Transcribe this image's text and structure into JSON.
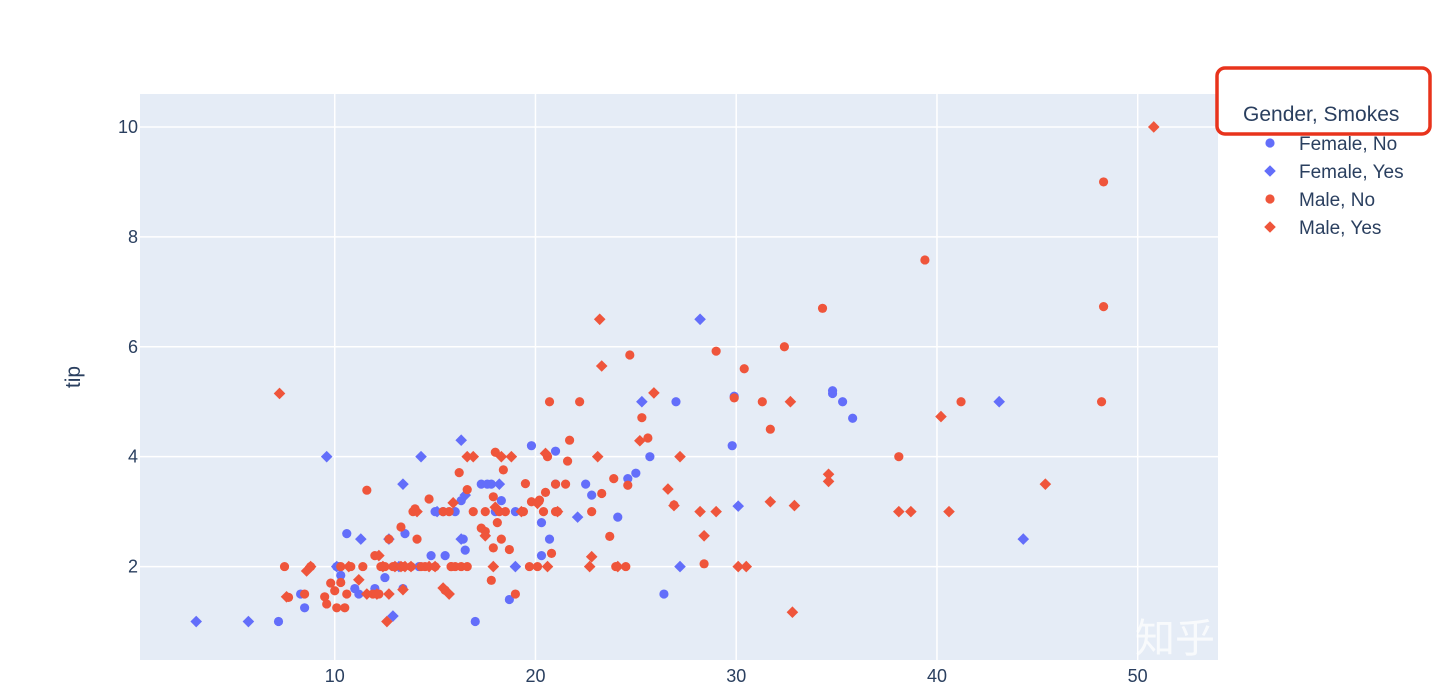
{
  "chart_data": {
    "type": "scatter",
    "xlabel": "",
    "ylabel": "tip",
    "xlim": [
      0.3,
      54.0
    ],
    "ylim": [
      0.3,
      10.6
    ],
    "x_ticks": [
      10,
      20,
      30,
      40,
      50
    ],
    "y_ticks": [
      2,
      4,
      6,
      8,
      10
    ],
    "grid": true,
    "legend": {
      "title": "Gender, Smokes",
      "placement": "top-right"
    },
    "colors": {
      "Female": "#636efa",
      "Male": "#ef553b",
      "plot_bg": "#e5ecf6",
      "highlight": "#e8331c"
    },
    "series": [
      {
        "name": "Female, No",
        "marker": "circle",
        "color": "#636efa",
        "points": [
          [
            7.2,
            1.0
          ],
          [
            10.3,
            1.84
          ],
          [
            10.2,
            2.0
          ],
          [
            10.6,
            2.6
          ],
          [
            11.2,
            1.5
          ],
          [
            12.5,
            1.8
          ],
          [
            13.5,
            2.6
          ],
          [
            14.2,
            2.0
          ],
          [
            15.0,
            3.0
          ],
          [
            15.4,
            3.0
          ],
          [
            16.4,
            2.5
          ],
          [
            16.5,
            2.3
          ],
          [
            17.0,
            1.0
          ],
          [
            17.3,
            3.5
          ],
          [
            17.6,
            3.5
          ],
          [
            18.0,
            3.0
          ],
          [
            18.3,
            3.2
          ],
          [
            18.7,
            1.4
          ],
          [
            19.0,
            3.0
          ],
          [
            19.8,
            4.2
          ],
          [
            20.3,
            2.8
          ],
          [
            20.7,
            2.5
          ],
          [
            21.0,
            3.5
          ],
          [
            21.0,
            4.1
          ],
          [
            22.5,
            3.5
          ],
          [
            22.8,
            3.3
          ],
          [
            24.1,
            2.9
          ],
          [
            24.6,
            3.6
          ],
          [
            25.0,
            3.7
          ],
          [
            25.7,
            4.0
          ],
          [
            26.4,
            1.5
          ],
          [
            27.0,
            5.0
          ],
          [
            29.8,
            4.2
          ],
          [
            29.9,
            5.1
          ],
          [
            34.8,
            5.2
          ],
          [
            35.3,
            5.0
          ],
          [
            35.8,
            4.7
          ],
          [
            34.8,
            5.15
          ],
          [
            16.0,
            3.0
          ],
          [
            13.0,
            2.0
          ],
          [
            12.0,
            1.6
          ],
          [
            11.0,
            1.6
          ],
          [
            8.3,
            1.5
          ],
          [
            8.5,
            1.25
          ],
          [
            10.1,
            2.0
          ],
          [
            14.8,
            2.2
          ],
          [
            16.3,
            3.2
          ],
          [
            17.8,
            3.5
          ],
          [
            20.3,
            2.2
          ],
          [
            13.4,
            1.6
          ],
          [
            15.5,
            2.2
          ]
        ]
      },
      {
        "name": "Female, Yes",
        "marker": "diamond",
        "color": "#636efa",
        "points": [
          [
            3.1,
            1.0
          ],
          [
            5.7,
            1.0
          ],
          [
            9.6,
            4.0
          ],
          [
            10.1,
            2.0
          ],
          [
            11.3,
            2.5
          ],
          [
            12.9,
            1.1
          ],
          [
            13.4,
            3.5
          ],
          [
            14.3,
            4.0
          ],
          [
            16.3,
            4.3
          ],
          [
            16.5,
            3.3
          ],
          [
            16.3,
            2.5
          ],
          [
            18.2,
            3.5
          ],
          [
            22.1,
            2.9
          ],
          [
            25.3,
            5.0
          ],
          [
            27.2,
            2.0
          ],
          [
            28.2,
            6.5
          ],
          [
            30.1,
            3.1
          ],
          [
            43.1,
            5.0
          ],
          [
            44.3,
            2.5
          ],
          [
            12.7,
            2.5
          ],
          [
            13.2,
            2.0
          ],
          [
            19.0,
            2.0
          ],
          [
            15.1,
            3.0
          ]
        ]
      },
      {
        "name": "Male, No",
        "marker": "circle",
        "color": "#ef553b",
        "points": [
          [
            7.5,
            2.0
          ],
          [
            7.7,
            1.44
          ],
          [
            8.5,
            1.5
          ],
          [
            8.8,
            2.0
          ],
          [
            9.5,
            1.45
          ],
          [
            9.6,
            1.32
          ],
          [
            9.8,
            1.7
          ],
          [
            10.0,
            1.56
          ],
          [
            10.1,
            1.25
          ],
          [
            10.3,
            1.71
          ],
          [
            10.3,
            2.0
          ],
          [
            10.5,
            1.25
          ],
          [
            10.6,
            1.5
          ],
          [
            10.8,
            2.0
          ],
          [
            11.4,
            2.0
          ],
          [
            11.6,
            3.39
          ],
          [
            11.9,
            1.5
          ],
          [
            12.0,
            2.2
          ],
          [
            12.2,
            1.5
          ],
          [
            12.5,
            2.0
          ],
          [
            12.7,
            2.5
          ],
          [
            12.9,
            2.0
          ],
          [
            13.0,
            2.0
          ],
          [
            13.3,
            2.72
          ],
          [
            13.4,
            2.0
          ],
          [
            13.8,
            2.0
          ],
          [
            13.9,
            3.0
          ],
          [
            14.1,
            2.5
          ],
          [
            14.3,
            2.0
          ],
          [
            14.5,
            2.0
          ],
          [
            14.7,
            3.23
          ],
          [
            15.0,
            2.0
          ],
          [
            15.4,
            3.0
          ],
          [
            15.5,
            1.57
          ],
          [
            15.7,
            3.0
          ],
          [
            15.8,
            2.0
          ],
          [
            16.0,
            2.0
          ],
          [
            16.2,
            3.71
          ],
          [
            16.3,
            2.0
          ],
          [
            16.6,
            2.0
          ],
          [
            16.6,
            3.4
          ],
          [
            16.9,
            3.0
          ],
          [
            17.3,
            2.7
          ],
          [
            17.5,
            2.64
          ],
          [
            17.8,
            1.75
          ],
          [
            17.9,
            2.34
          ],
          [
            17.9,
            3.27
          ],
          [
            18.0,
            4.08
          ],
          [
            18.2,
            3.0
          ],
          [
            18.3,
            2.5
          ],
          [
            18.4,
            3.76
          ],
          [
            18.5,
            3.0
          ],
          [
            18.7,
            2.31
          ],
          [
            19.0,
            1.5
          ],
          [
            19.4,
            3.0
          ],
          [
            19.5,
            3.51
          ],
          [
            19.7,
            2.0
          ],
          [
            19.8,
            3.18
          ],
          [
            20.1,
            2.0
          ],
          [
            20.2,
            3.21
          ],
          [
            20.4,
            3.0
          ],
          [
            20.5,
            3.35
          ],
          [
            20.7,
            5.0
          ],
          [
            20.8,
            2.24
          ],
          [
            21.0,
            3.0
          ],
          [
            21.0,
            3.5
          ],
          [
            21.5,
            3.5
          ],
          [
            21.6,
            3.92
          ],
          [
            21.7,
            4.3
          ],
          [
            22.2,
            5.0
          ],
          [
            22.8,
            3.0
          ],
          [
            23.3,
            3.33
          ],
          [
            23.7,
            2.55
          ],
          [
            23.9,
            3.6
          ],
          [
            24.0,
            2.0
          ],
          [
            24.5,
            2.0
          ],
          [
            24.6,
            3.48
          ],
          [
            24.7,
            5.85
          ],
          [
            25.3,
            4.71
          ],
          [
            25.6,
            4.34
          ],
          [
            26.9,
            3.12
          ],
          [
            28.4,
            2.05
          ],
          [
            29.0,
            5.92
          ],
          [
            29.9,
            5.07
          ],
          [
            30.4,
            5.6
          ],
          [
            31.3,
            5.0
          ],
          [
            31.7,
            4.5
          ],
          [
            32.4,
            6.0
          ],
          [
            34.3,
            6.7
          ],
          [
            38.1,
            4.0
          ],
          [
            39.4,
            7.58
          ],
          [
            41.2,
            5.0
          ],
          [
            48.2,
            5.0
          ],
          [
            48.3,
            6.73
          ],
          [
            48.3,
            9.0
          ],
          [
            17.5,
            3.0
          ],
          [
            15.8,
            2.0
          ],
          [
            12.3,
            2.0
          ],
          [
            14.0,
            3.05
          ],
          [
            18.1,
            2.8
          ],
          [
            21.1,
            3.0
          ],
          [
            20.6,
            4.0
          ]
        ]
      },
      {
        "name": "Male, Yes",
        "marker": "diamond",
        "color": "#ef553b",
        "points": [
          [
            7.25,
            5.15
          ],
          [
            7.6,
            1.45
          ],
          [
            8.6,
            1.92
          ],
          [
            8.8,
            2.0
          ],
          [
            10.7,
            2.0
          ],
          [
            11.2,
            1.76
          ],
          [
            11.6,
            1.5
          ],
          [
            12.1,
            1.5
          ],
          [
            12.4,
            2.0
          ],
          [
            12.6,
            1.0
          ],
          [
            12.7,
            1.5
          ],
          [
            13.0,
            2.0
          ],
          [
            13.3,
            2.0
          ],
          [
            13.4,
            1.58
          ],
          [
            13.8,
            2.0
          ],
          [
            14.1,
            3.0
          ],
          [
            14.7,
            2.0
          ],
          [
            15.0,
            2.0
          ],
          [
            15.4,
            1.61
          ],
          [
            15.7,
            1.5
          ],
          [
            15.9,
            3.16
          ],
          [
            16.6,
            4.0
          ],
          [
            16.9,
            4.0
          ],
          [
            17.5,
            2.56
          ],
          [
            17.9,
            2.0
          ],
          [
            18.0,
            3.08
          ],
          [
            18.3,
            4.0
          ],
          [
            18.8,
            4.0
          ],
          [
            19.3,
            3.0
          ],
          [
            20.1,
            3.15
          ],
          [
            20.5,
            4.06
          ],
          [
            20.6,
            2.0
          ],
          [
            21.1,
            3.0
          ],
          [
            22.8,
            2.18
          ],
          [
            22.7,
            2.0
          ],
          [
            23.1,
            4.0
          ],
          [
            23.2,
            6.5
          ],
          [
            23.3,
            5.65
          ],
          [
            24.1,
            2.0
          ],
          [
            25.2,
            4.29
          ],
          [
            25.9,
            5.16
          ],
          [
            26.6,
            3.41
          ],
          [
            26.9,
            3.11
          ],
          [
            27.2,
            4.0
          ],
          [
            28.2,
            3.0
          ],
          [
            28.4,
            2.56
          ],
          [
            29.0,
            3.0
          ],
          [
            30.1,
            2.0
          ],
          [
            30.5,
            2.0
          ],
          [
            31.7,
            3.18
          ],
          [
            32.7,
            5.0
          ],
          [
            32.8,
            1.17
          ],
          [
            32.9,
            3.11
          ],
          [
            34.6,
            3.55
          ],
          [
            34.6,
            3.68
          ],
          [
            38.1,
            3.0
          ],
          [
            38.7,
            3.0
          ],
          [
            40.2,
            4.73
          ],
          [
            40.6,
            3.0
          ],
          [
            45.4,
            3.5
          ],
          [
            50.8,
            10.0
          ],
          [
            12.2,
            2.2
          ],
          [
            13.5,
            2.0
          ]
        ]
      }
    ]
  },
  "watermark": {
    "text": "知乎 @皮大大"
  }
}
